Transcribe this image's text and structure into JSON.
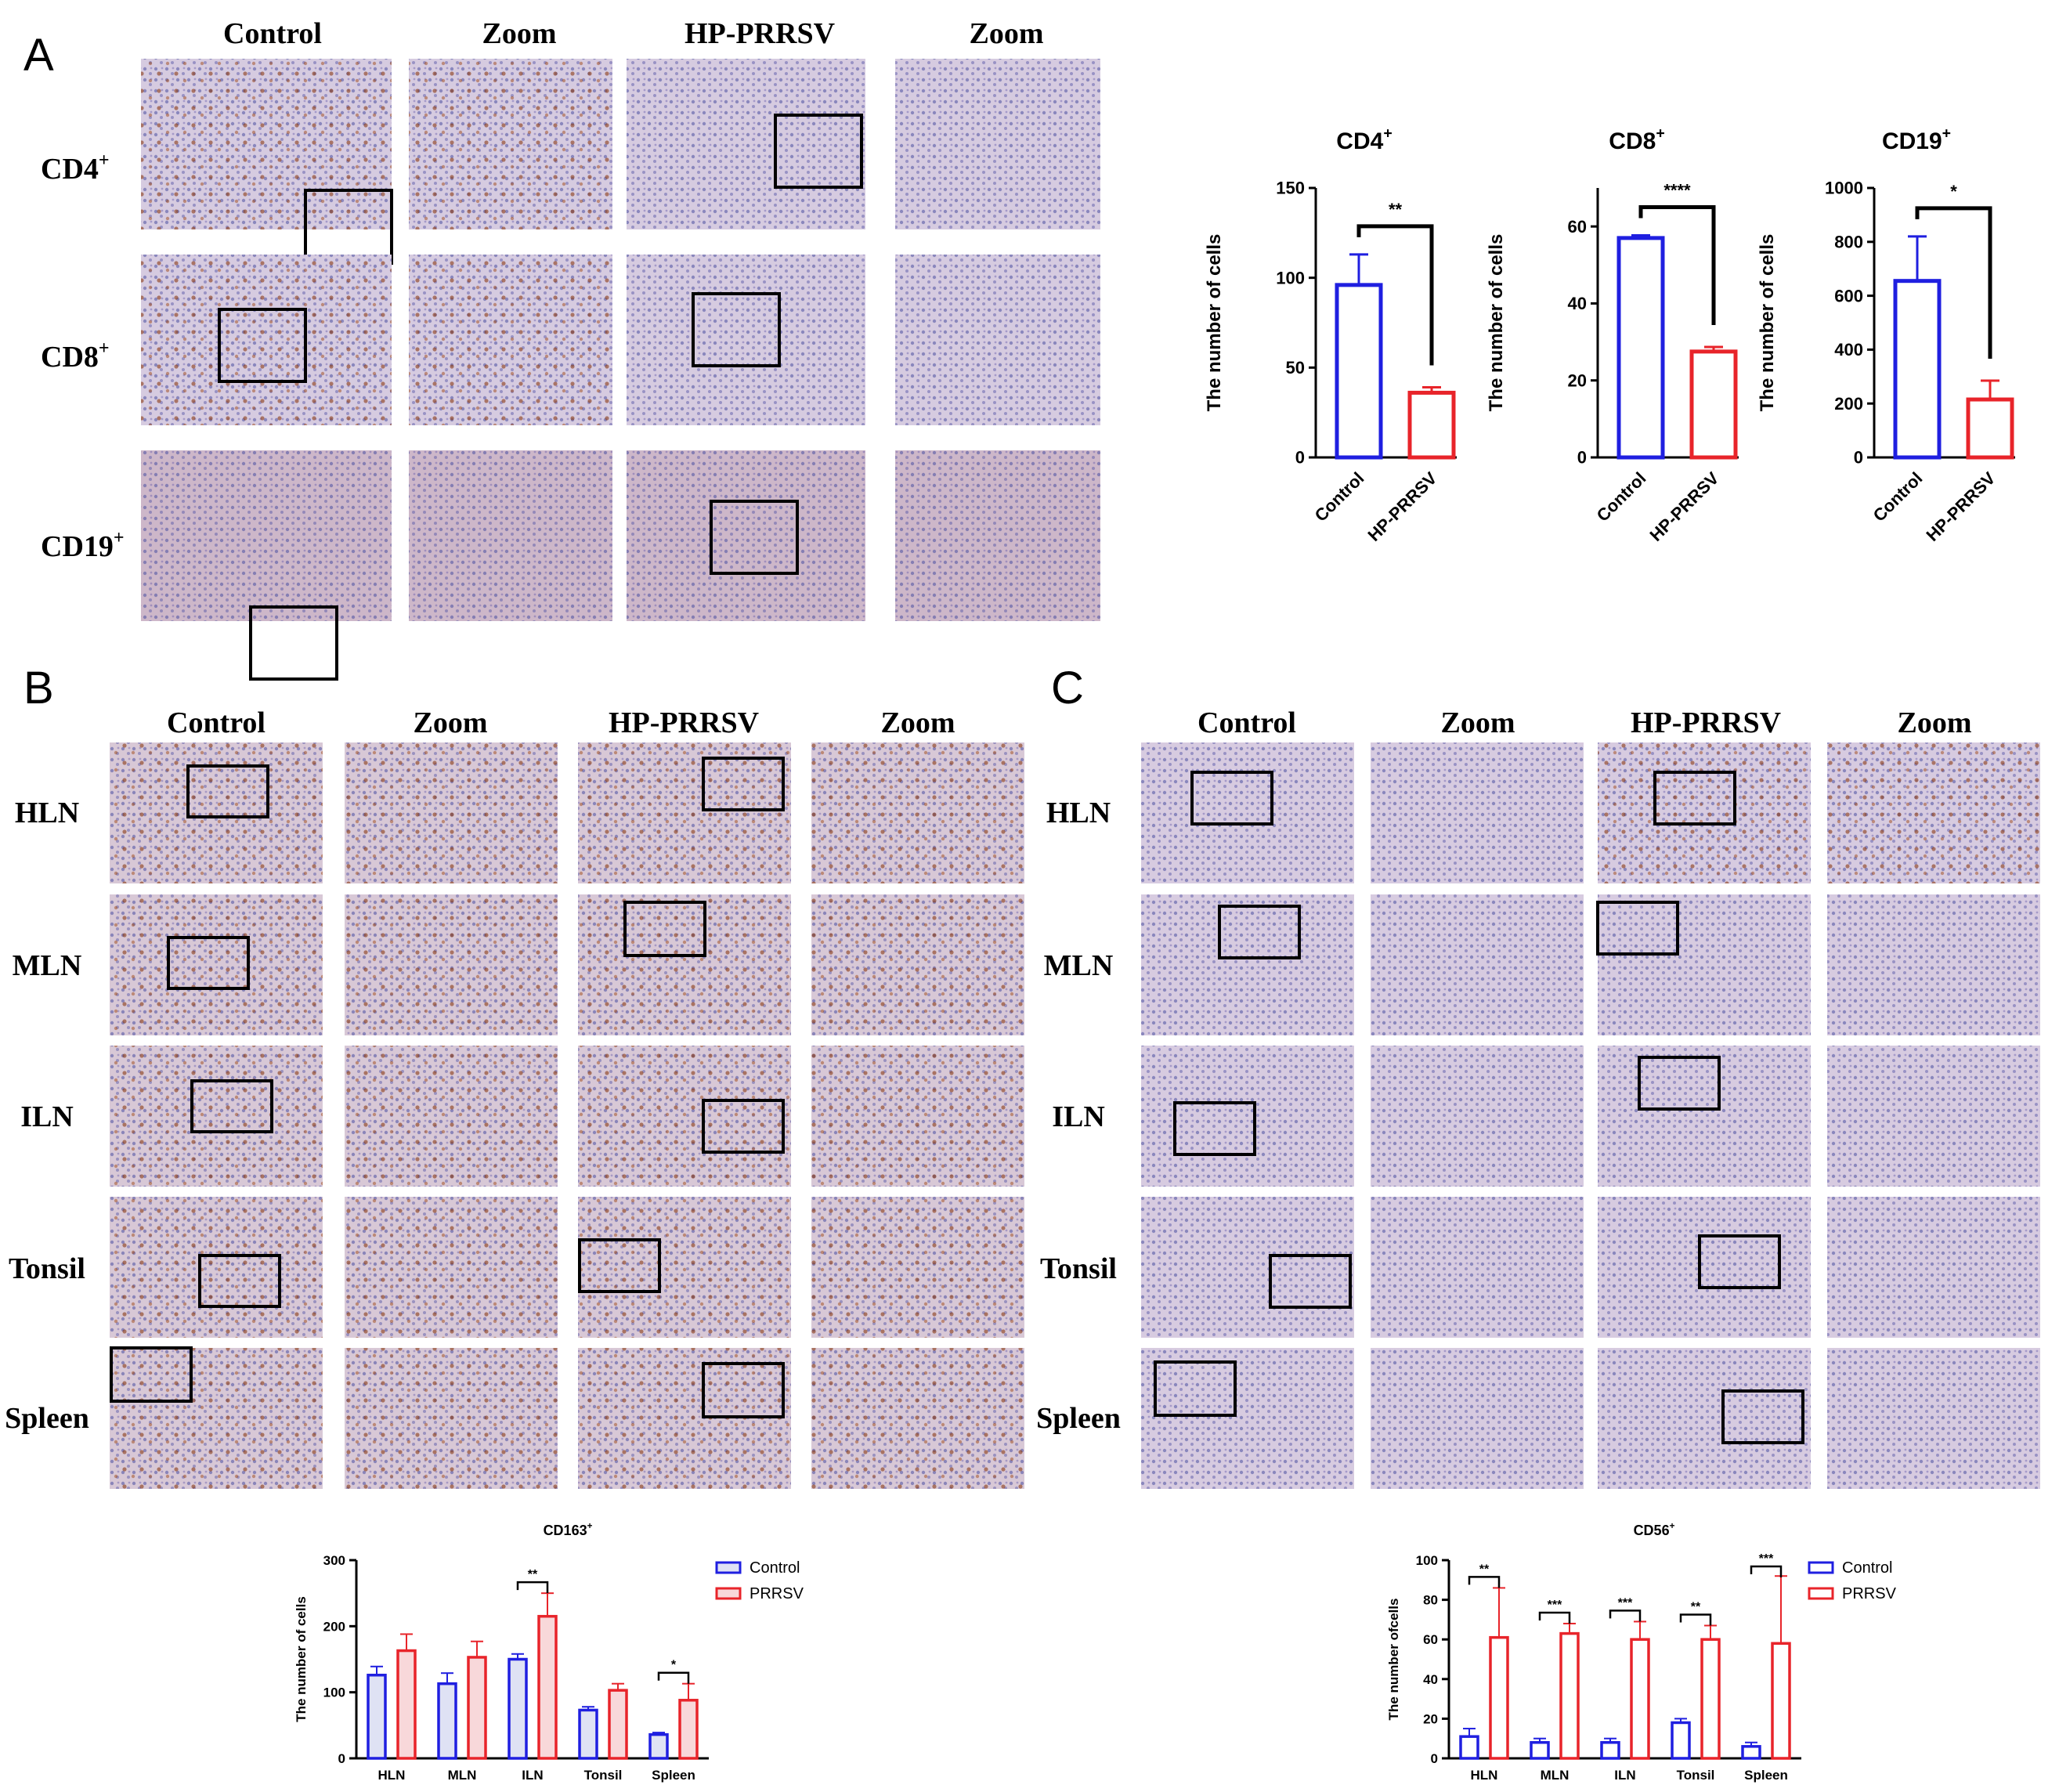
{
  "panel_letters": [
    "A",
    "B",
    "C"
  ],
  "panel_a": {
    "column_headers": [
      "Control",
      "Zoom",
      "HP-PRRSV",
      "Zoom"
    ],
    "row_labels": [
      {
        "base": "CD4",
        "sup": "+"
      },
      {
        "base": "CD8",
        "sup": "+"
      },
      {
        "base": "CD19",
        "sup": "+"
      }
    ]
  },
  "panel_b": {
    "column_headers": [
      "Control",
      "Zoom",
      "HP-PRRSV",
      "Zoom"
    ],
    "row_labels": [
      "HLN",
      "MLN",
      "ILN",
      "Tonsil",
      "Spleen"
    ]
  },
  "panel_c": {
    "column_headers": [
      "Control",
      "Zoom",
      "HP-PRRSV",
      "Zoom"
    ],
    "row_labels": [
      "HLN",
      "MLN",
      "ILN",
      "Tonsil",
      "Spleen"
    ]
  },
  "colors": {
    "control": "#1f1fe0",
    "prrsv": "#e8242a",
    "axis": "#000000"
  },
  "chart_data": [
    {
      "type": "bar",
      "title": {
        "base": "CD4",
        "sup": "+"
      },
      "ylabel": "The number of cells",
      "categories": [
        "Control",
        "HP-PRRSV"
      ],
      "values": [
        96,
        36
      ],
      "errors": [
        17,
        3
      ],
      "ylim": [
        0,
        150
      ],
      "yticks": [
        0,
        50,
        100,
        150
      ],
      "significance": "**",
      "fill": "open"
    },
    {
      "type": "bar",
      "title": {
        "base": "CD8",
        "sup": "+"
      },
      "ylabel": "The number of cells",
      "categories": [
        "Control",
        "HP-PRRSV"
      ],
      "values": [
        57,
        27.5
      ],
      "errors": [
        0.7,
        1.2
      ],
      "ylim": [
        0,
        70
      ],
      "yticks": [
        0,
        20,
        40,
        60
      ],
      "significance": "****",
      "fill": "open"
    },
    {
      "type": "bar",
      "title": {
        "base": "CD19",
        "sup": "+"
      },
      "ylabel": "The number of cells",
      "categories": [
        "Control",
        "HP-PRRSV"
      ],
      "values": [
        655,
        215
      ],
      "errors": [
        165,
        70
      ],
      "ylim": [
        0,
        1000
      ],
      "yticks": [
        0,
        200,
        400,
        600,
        800,
        1000
      ],
      "significance": "*",
      "fill": "open"
    },
    {
      "type": "bar",
      "title": {
        "base": "CD163",
        "sup": "+"
      },
      "ylabel": "The number of cells",
      "categories": [
        "HLN",
        "MLN",
        "ILN",
        "Tonsil",
        "Spleen"
      ],
      "ylim": [
        0,
        300
      ],
      "yticks": [
        0,
        100,
        200,
        300
      ],
      "legend_position": "top-right",
      "fill": "light",
      "series": [
        {
          "name": "Control",
          "values": [
            126,
            113,
            150,
            73,
            36
          ],
          "errors": [
            13,
            16,
            8,
            5,
            3
          ]
        },
        {
          "name": "PRRSV",
          "values": [
            163,
            153,
            215,
            103,
            88
          ],
          "errors": [
            25,
            24,
            35,
            10,
            25
          ]
        }
      ],
      "significance": [
        {
          "category": "ILN",
          "label": "**"
        },
        {
          "category": "Spleen",
          "label": "*"
        }
      ]
    },
    {
      "type": "bar",
      "title": {
        "base": "CD56",
        "sup": "+"
      },
      "ylabel": "The number ofcells",
      "categories": [
        "HLN",
        "MLN",
        "ILN",
        "Tonsil",
        "Spleen"
      ],
      "ylim": [
        0,
        100
      ],
      "yticks": [
        0,
        20,
        40,
        60,
        80,
        100
      ],
      "legend_position": "top-right",
      "fill": "open",
      "series": [
        {
          "name": "Control",
          "values": [
            11,
            8,
            8,
            18,
            6
          ],
          "errors": [
            4,
            2,
            2,
            2,
            2
          ]
        },
        {
          "name": "PRRSV",
          "values": [
            61,
            63,
            60,
            60,
            58
          ],
          "errors": [
            25,
            5,
            9,
            7,
            34
          ]
        }
      ],
      "significance": [
        {
          "category": "HLN",
          "label": "**"
        },
        {
          "category": "MLN",
          "label": "***"
        },
        {
          "category": "ILN",
          "label": "***"
        },
        {
          "category": "Tonsil",
          "label": "**"
        },
        {
          "category": "Spleen",
          "label": "***"
        }
      ]
    }
  ]
}
